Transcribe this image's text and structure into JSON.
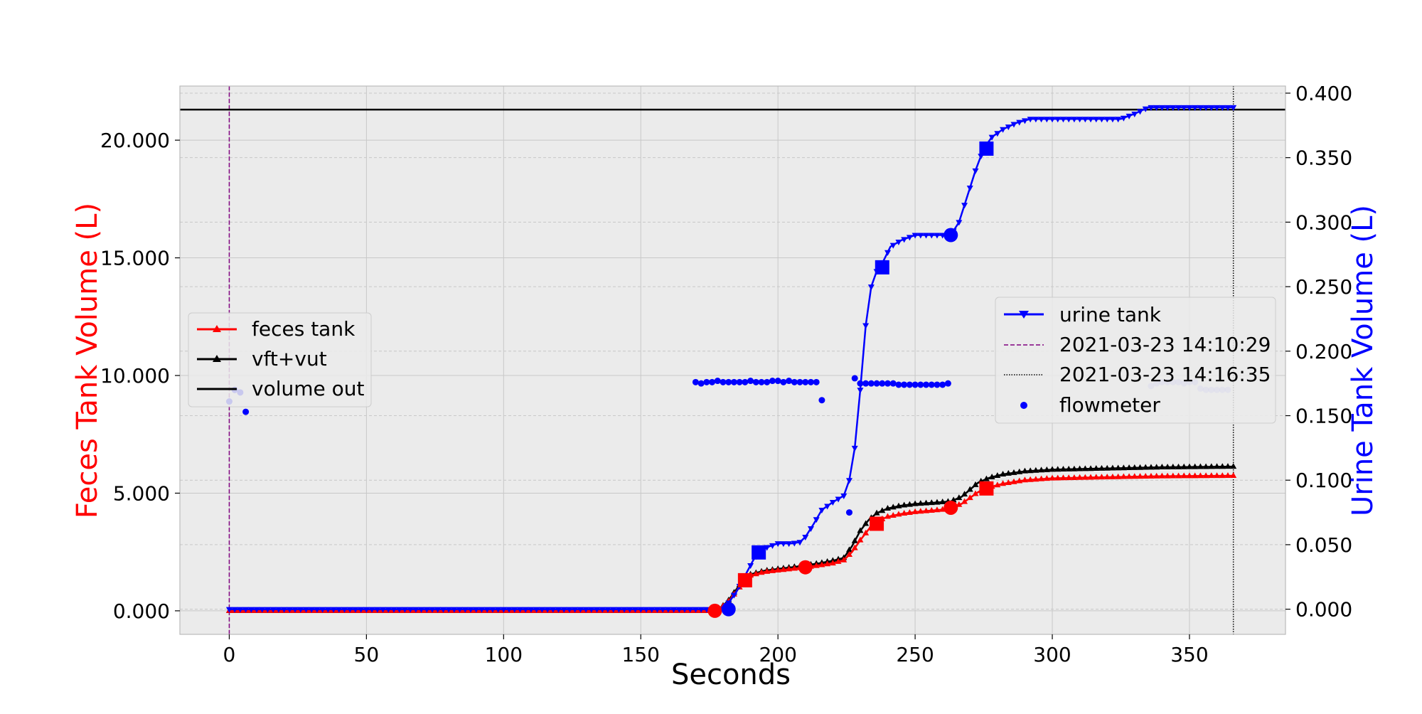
{
  "chart_data": {
    "type": "line",
    "title": "",
    "xlabel": "Seconds",
    "ylabel_left": "Feces Tank Volume (L)",
    "ylabel_right": "Urine Tank Volume (L)",
    "colors": {
      "feces": "#ff0000",
      "urine": "#0000ff",
      "vft_vut": "#000000",
      "volume_out": "#000000",
      "start_line": "#800080",
      "end_line": "#000000",
      "flowmeter": "#0000ff",
      "plot_bg": "#ebebeb",
      "grid": "#c8c8c8"
    },
    "grid": true,
    "xlim": [
      -18,
      385
    ],
    "ylim_left": [
      -1000,
      22300
    ],
    "ylim_right": [
      -0.0195,
      0.4055
    ],
    "xticks": [
      0,
      50,
      100,
      150,
      200,
      250,
      300,
      350
    ],
    "xtick_labels": [
      "0",
      "50",
      "100",
      "150",
      "200",
      "250",
      "300",
      "350"
    ],
    "yticks_left": [
      0,
      5000,
      10000,
      15000,
      20000
    ],
    "ytick_labels_left": [
      "0.000",
      "5.000",
      "10.000",
      "15.000",
      "20.000"
    ],
    "yticks_right": [
      0,
      0.05,
      0.1,
      0.15,
      0.2,
      0.25,
      0.3,
      0.35,
      0.4
    ],
    "ytick_labels_right": [
      "0.000",
      "0.050",
      "0.100",
      "0.150",
      "0.200",
      "0.250",
      "0.300",
      "0.350",
      "0.400"
    ],
    "legend_left": {
      "placement": "center-left",
      "entries": [
        "feces tank",
        "vft+vut",
        "volume out"
      ]
    },
    "legend_right": {
      "placement": "center-right",
      "entries": [
        "urine tank",
        "2021-03-23 14:10:29",
        "2021-03-23 14:16:35",
        "flowmeter"
      ]
    },
    "series": [
      {
        "name": "feces tank",
        "axis": "left",
        "marker": "triangle-up",
        "x": [
          0,
          178,
          182,
          186,
          190,
          195,
          200,
          205,
          210,
          215,
          220,
          224,
          227,
          230,
          233,
          236,
          240,
          245,
          250,
          255,
          260,
          263,
          267,
          270,
          273,
          277,
          282,
          290,
          300,
          320,
          340,
          366
        ],
        "y": [
          0,
          0,
          400,
          1000,
          1500,
          1650,
          1720,
          1780,
          1850,
          1930,
          2020,
          2150,
          2500,
          3000,
          3450,
          3800,
          4000,
          4120,
          4200,
          4250,
          4300,
          4380,
          4550,
          4800,
          5050,
          5250,
          5400,
          5550,
          5630,
          5680,
          5720,
          5740
        ]
      },
      {
        "name": "vft+vut",
        "axis": "left",
        "marker": "triangle-up",
        "x": [
          0,
          178,
          182,
          186,
          190,
          195,
          200,
          205,
          210,
          215,
          220,
          224,
          227,
          230,
          233,
          236,
          240,
          245,
          250,
          255,
          260,
          263,
          267,
          270,
          273,
          277,
          282,
          290,
          300,
          320,
          340,
          366
        ],
        "y": [
          0,
          0,
          450,
          1100,
          1550,
          1700,
          1780,
          1850,
          1930,
          2020,
          2130,
          2250,
          2750,
          3400,
          3850,
          4150,
          4350,
          4470,
          4540,
          4580,
          4620,
          4650,
          4850,
          5150,
          5450,
          5650,
          5800,
          5930,
          6000,
          6050,
          6100,
          6130
        ]
      },
      {
        "name": "urine tank",
        "axis": "right",
        "marker": "triangle-down",
        "x": [
          0,
          180,
          182,
          185,
          188,
          191,
          193,
          196,
          200,
          205,
          208,
          210,
          213,
          216,
          220,
          224,
          226,
          228,
          230,
          232,
          234,
          236,
          238,
          241,
          245,
          250,
          255,
          260,
          263,
          266,
          269,
          272,
          275,
          278,
          282,
          287,
          292,
          300,
          310,
          325,
          330,
          335,
          340,
          350,
          366
        ],
        "y": [
          0,
          0,
          0.005,
          0.014,
          0.026,
          0.038,
          0.044,
          0.048,
          0.051,
          0.051,
          0.052,
          0.056,
          0.066,
          0.077,
          0.083,
          0.088,
          0.1,
          0.125,
          0.17,
          0.22,
          0.25,
          0.262,
          0.268,
          0.281,
          0.286,
          0.29,
          0.29,
          0.29,
          0.29,
          0.3,
          0.32,
          0.34,
          0.357,
          0.366,
          0.372,
          0.377,
          0.38,
          0.38,
          0.38,
          0.38,
          0.384,
          0.389,
          0.389,
          0.389,
          0.389
        ]
      },
      {
        "name": "volume out",
        "axis": "left",
        "marker": "none",
        "x": [
          -18,
          385
        ],
        "y": [
          21300,
          21300
        ]
      },
      {
        "name": "flowmeter",
        "axis": "right",
        "type": "scatter",
        "x": [
          0,
          2,
          4,
          6,
          170,
          172,
          174,
          176,
          178,
          180,
          182,
          184,
          186,
          188,
          190,
          192,
          194,
          196,
          198,
          200,
          202,
          204,
          206,
          208,
          210,
          212,
          214,
          216,
          226,
          228,
          230,
          232,
          234,
          236,
          238,
          240,
          242,
          244,
          246,
          248,
          250,
          252,
          254,
          256,
          258,
          260,
          262,
          336,
          338,
          340,
          342,
          344,
          346,
          348,
          350,
          352,
          354,
          356,
          358,
          360,
          362,
          364
        ],
        "y": [
          0.161,
          0.17,
          0.168,
          0.153,
          0.176,
          0.175,
          0.176,
          0.176,
          0.177,
          0.176,
          0.176,
          0.176,
          0.176,
          0.176,
          0.177,
          0.176,
          0.176,
          0.176,
          0.177,
          0.177,
          0.176,
          0.177,
          0.176,
          0.176,
          0.176,
          0.176,
          0.176,
          0.162,
          0.075,
          0.179,
          0.175,
          0.175,
          0.175,
          0.175,
          0.175,
          0.175,
          0.175,
          0.174,
          0.174,
          0.174,
          0.174,
          0.174,
          0.174,
          0.174,
          0.174,
          0.174,
          0.175,
          0.173,
          0.175,
          0.176,
          0.176,
          0.176,
          0.176,
          0.175,
          0.176,
          0.176,
          0.171,
          0.17,
          0.17,
          0.17,
          0.17,
          0.17
        ]
      }
    ],
    "highlight_markers": {
      "feces_circles": {
        "x": [
          177,
          210,
          263
        ],
        "y": [
          0,
          1850,
          4380
        ]
      },
      "feces_squares": {
        "x": [
          188,
          236,
          276
        ],
        "y": [
          1300,
          3700,
          5200
        ]
      },
      "urine_circles": {
        "x": [
          182,
          263
        ],
        "y": [
          0,
          0.29
        ]
      },
      "urine_squares": {
        "x": [
          193,
          238,
          276
        ],
        "y": [
          0.044,
          0.265,
          0.357
        ]
      }
    },
    "vlines": [
      {
        "x": 0,
        "label": "2021-03-23 14:10:29",
        "style": "dashed"
      },
      {
        "x": 366,
        "label": "2021-03-23 14:16:35",
        "style": "dotted"
      }
    ]
  }
}
